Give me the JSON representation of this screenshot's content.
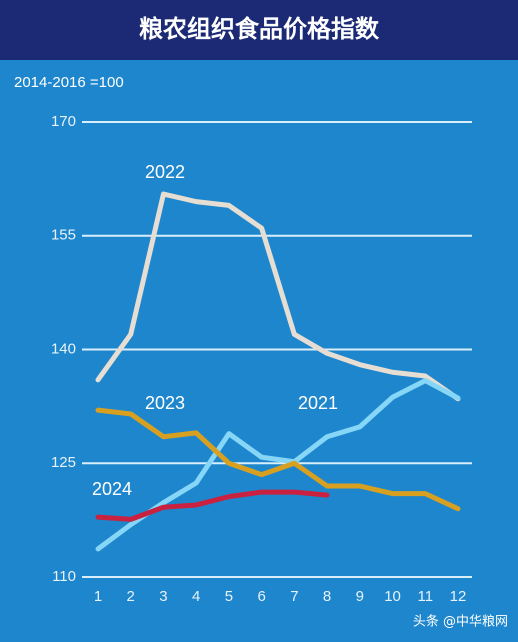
{
  "chart_data": {
    "type": "line",
    "title": "粮农组织食品价格指数",
    "subtitle": "2014-2016 =100",
    "watermark": "头条 @中华粮网",
    "categories": [
      "1",
      "2",
      "3",
      "4",
      "5",
      "6",
      "7",
      "8",
      "9",
      "10",
      "11",
      "12"
    ],
    "series": [
      {
        "name": "2022",
        "color": "#e6ddd3",
        "values": [
          136,
          142,
          160.5,
          159.5,
          159,
          156,
          142,
          139.5,
          138,
          137,
          136.5,
          133.5
        ]
      },
      {
        "name": "2021",
        "color": "#86d6f7",
        "values": [
          113.7,
          116.9,
          119.8,
          122.4,
          128.9,
          125.8,
          125.2,
          128.5,
          129.8,
          133.7,
          135.9,
          133.6
        ]
      },
      {
        "name": "2023",
        "color": "#d8a021",
        "values": [
          132,
          131.5,
          128.5,
          129,
          125,
          123.5,
          125,
          122,
          122,
          121,
          121,
          119
        ]
      },
      {
        "name": "2024",
        "color": "#c9213f",
        "values": [
          117.9,
          117.6,
          119.2,
          119.5,
          120.6,
          121.2,
          121.2,
          120.8,
          null,
          null,
          null,
          null
        ]
      }
    ],
    "ylim": [
      110,
      170
    ],
    "yticks": [
      110,
      125,
      140,
      155,
      170
    ],
    "grid": true
  }
}
